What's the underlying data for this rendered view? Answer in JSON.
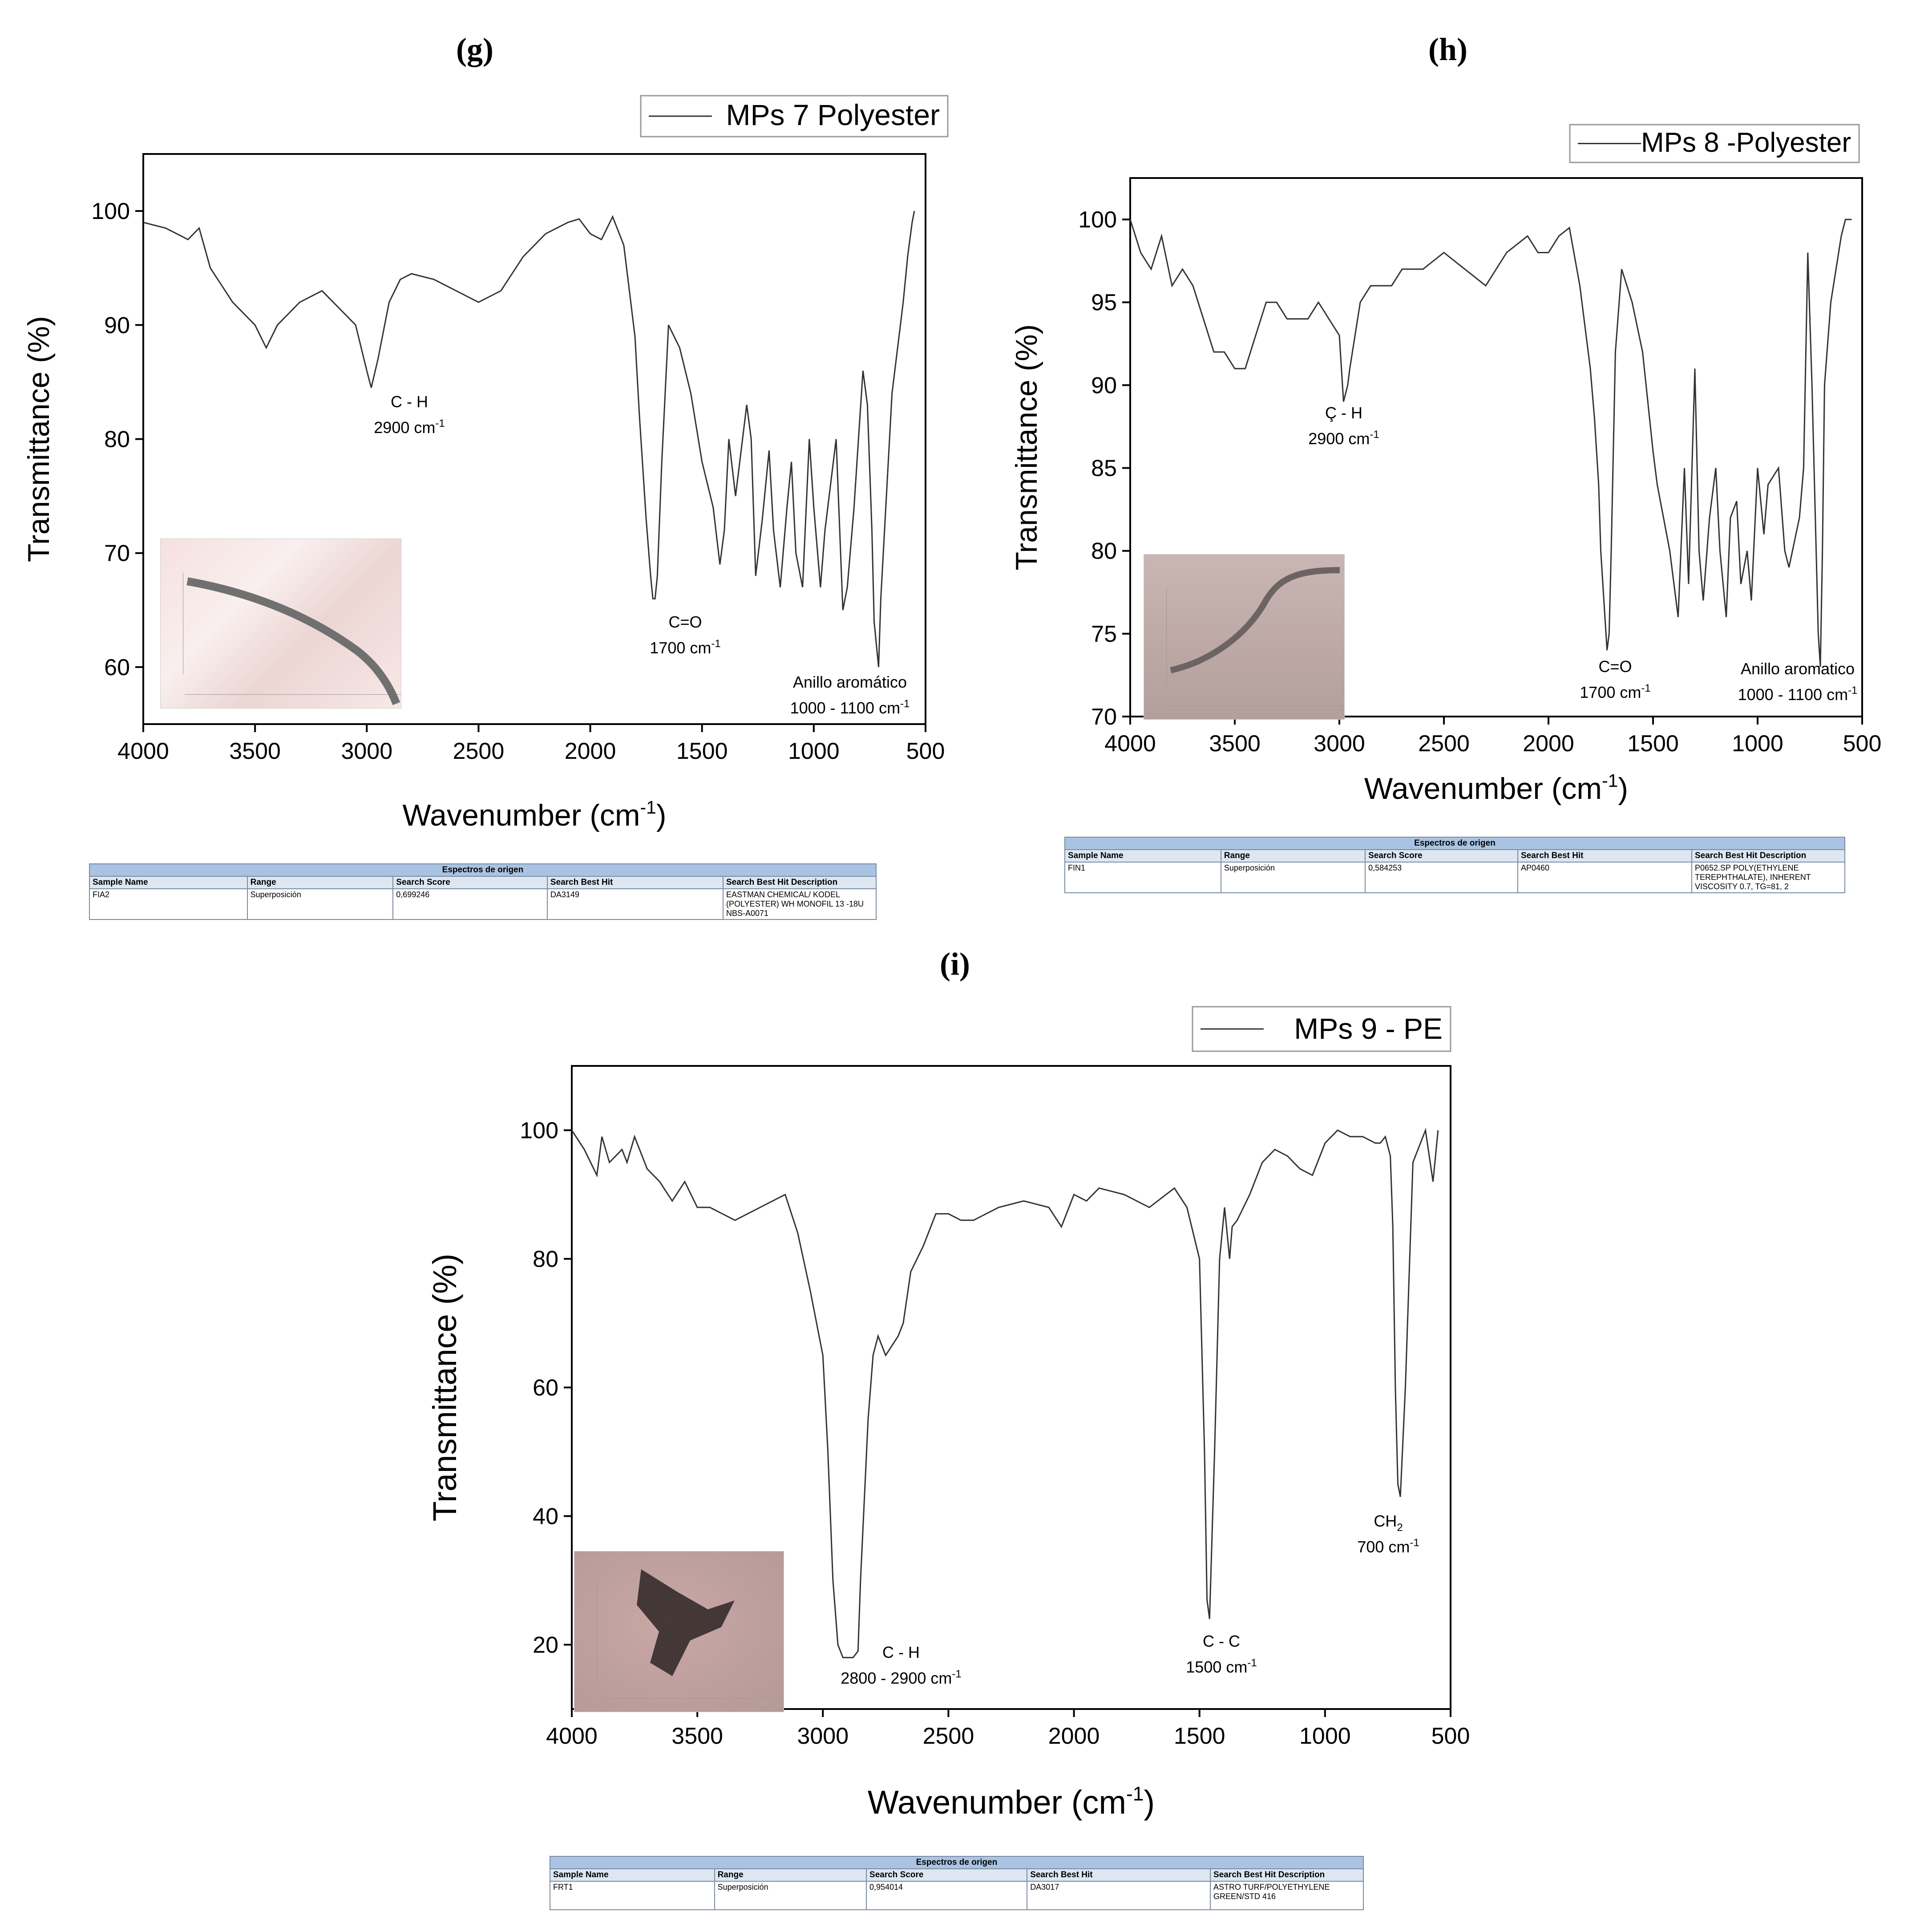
{
  "panels": [
    {
      "label": "(g)",
      "legend": "MPs 7 Polyester"
    },
    {
      "label": "(h)",
      "legend": "MPs 8 -Polyester"
    },
    {
      "label": "(i)",
      "legend": "MPs 9 - PE"
    }
  ],
  "chart_data": [
    {
      "type": "line",
      "panel": "g",
      "series": [
        {
          "name": "MPs 7 Polyester",
          "x": [
            4000,
            3900,
            3800,
            3750,
            3700,
            3600,
            3500,
            3450,
            3400,
            3300,
            3200,
            3100,
            3050,
            3000,
            2980,
            2950,
            2900,
            2850,
            2800,
            2700,
            2600,
            2500,
            2400,
            2300,
            2200,
            2100,
            2050,
            2000,
            1950,
            1900,
            1850,
            1800,
            1780,
            1750,
            1730,
            1720,
            1710,
            1700,
            1680,
            1650,
            1600,
            1550,
            1500,
            1450,
            1420,
            1400,
            1380,
            1350,
            1300,
            1280,
            1260,
            1230,
            1200,
            1180,
            1150,
            1120,
            1100,
            1080,
            1050,
            1020,
            1000,
            970,
            950,
            900,
            870,
            850,
            820,
            800,
            780,
            760,
            740,
            730,
            720,
            710,
            700,
            650,
            600,
            580,
            560,
            550
          ],
          "y": [
            99,
            98.5,
            97.5,
            98.5,
            95,
            92,
            90,
            88,
            90,
            92,
            93,
            91,
            90,
            86,
            84.5,
            87,
            92,
            94,
            94.5,
            94,
            93,
            92,
            93,
            96,
            98,
            99,
            99.3,
            98,
            97.5,
            99.5,
            97,
            89,
            82,
            73,
            68,
            66,
            66,
            68,
            78,
            90,
            88,
            84,
            78,
            74,
            69,
            72,
            80,
            75,
            83,
            80,
            68,
            73,
            79,
            72,
            67,
            74,
            78,
            70,
            67,
            80,
            74,
            67,
            72,
            80,
            65,
            67,
            74,
            80,
            86,
            83,
            72,
            64,
            62,
            60,
            66,
            84,
            92,
            96,
            99,
            100
          ]
        }
      ],
      "title": "",
      "xlabel": "Wavenumber (cm-1)",
      "ylabel": "Transmittance (%)",
      "xlim": [
        4000,
        500
      ],
      "ylim": [
        55,
        105
      ],
      "xticks": [
        "4000",
        "3500",
        "3000",
        "2500",
        "2000",
        "1500",
        "1000",
        "500"
      ],
      "yticks": [
        "60",
        "70",
        "80",
        "90",
        "100"
      ],
      "annotations": [
        {
          "line1": "C - H",
          "line2": "2900 cm",
          "sup": "-1"
        },
        {
          "line1": "C=O",
          "line2": "1700 cm",
          "sup": "-1"
        },
        {
          "line1": "Anillo aromático",
          "line2": "1000 - 1100 cm",
          "sup": "-1"
        }
      ],
      "legend_position": "top-right"
    },
    {
      "type": "line",
      "panel": "h",
      "series": [
        {
          "name": "MPs 8 -Polyester",
          "x": [
            4000,
            3950,
            3900,
            3850,
            3800,
            3750,
            3700,
            3650,
            3600,
            3550,
            3500,
            3450,
            3400,
            3350,
            3300,
            3250,
            3200,
            3150,
            3100,
            3050,
            3000,
            2980,
            2960,
            2950,
            2900,
            2850,
            2800,
            2750,
            2700,
            2600,
            2500,
            2400,
            2300,
            2200,
            2100,
            2050,
            2000,
            1950,
            1900,
            1850,
            1800,
            1780,
            1760,
            1750,
            1730,
            1720,
            1710,
            1700,
            1680,
            1650,
            1600,
            1550,
            1500,
            1480,
            1450,
            1420,
            1400,
            1380,
            1350,
            1330,
            1300,
            1280,
            1260,
            1230,
            1200,
            1180,
            1150,
            1130,
            1100,
            1080,
            1050,
            1030,
            1000,
            970,
            950,
            900,
            870,
            850,
            800,
            780,
            760,
            740,
            720,
            710,
            700,
            690,
            680,
            650,
            600,
            580,
            550
          ],
          "y": [
            100,
            98,
            97,
            99,
            96,
            97,
            96,
            94,
            92,
            92,
            91,
            91,
            93,
            95,
            95,
            94,
            94,
            94,
            95,
            94,
            93,
            89,
            90,
            91,
            95,
            96,
            96,
            96,
            97,
            97,
            98,
            97,
            96,
            98,
            99,
            98,
            98,
            99,
            99.5,
            96,
            91,
            88,
            84,
            80,
            76,
            74,
            75,
            80,
            92,
            97,
            95,
            92,
            86,
            84,
            82,
            80,
            78,
            76,
            85,
            78,
            91,
            80,
            77,
            82,
            85,
            80,
            76,
            82,
            83,
            78,
            80,
            77,
            85,
            81,
            84,
            85,
            80,
            79,
            82,
            85,
            98,
            90,
            80,
            75,
            73,
            80,
            90,
            95,
            99,
            100,
            100
          ]
        }
      ],
      "title": "",
      "xlabel": "Wavenumber (cm-1)",
      "ylabel": "Transmittance (%)",
      "xlim": [
        4000,
        500
      ],
      "ylim": [
        70,
        102.5
      ],
      "xticks": [
        "4000",
        "3500",
        "3000",
        "2500",
        "2000",
        "1500",
        "1000",
        "500"
      ],
      "yticks": [
        "70",
        "75",
        "80",
        "85",
        "90",
        "95",
        "100"
      ],
      "annotations": [
        {
          "line1": "Ç - H",
          "line2": "2900 cm",
          "sup": "-1"
        },
        {
          "line1": "C=O",
          "line2": "1700 cm",
          "sup": "-1"
        },
        {
          "line1": "Anillo aromatico",
          "line2": "1000 - 1100 cm",
          "sup": "-1"
        }
      ],
      "legend_position": "top-right"
    },
    {
      "type": "line",
      "panel": "i",
      "series": [
        {
          "name": "MPs 9 - PE",
          "x": [
            4000,
            3950,
            3900,
            3880,
            3850,
            3800,
            3780,
            3750,
            3700,
            3650,
            3600,
            3550,
            3500,
            3450,
            3400,
            3350,
            3300,
            3250,
            3200,
            3150,
            3100,
            3050,
            3000,
            2980,
            2960,
            2940,
            2920,
            2900,
            2880,
            2860,
            2850,
            2820,
            2800,
            2780,
            2750,
            2700,
            2680,
            2650,
            2600,
            2550,
            2500,
            2450,
            2400,
            2300,
            2200,
            2100,
            2050,
            2000,
            1950,
            1900,
            1800,
            1700,
            1600,
            1550,
            1500,
            1480,
            1470,
            1460,
            1440,
            1420,
            1400,
            1380,
            1370,
            1350,
            1300,
            1250,
            1200,
            1150,
            1100,
            1050,
            1000,
            950,
            900,
            850,
            800,
            780,
            760,
            740,
            730,
            720,
            710,
            700,
            680,
            650,
            600,
            570,
            550
          ],
          "y": [
            100,
            97,
            93,
            99,
            95,
            97,
            95,
            99,
            94,
            92,
            89,
            92,
            88,
            88,
            87,
            86,
            87,
            88,
            89,
            90,
            84,
            75,
            65,
            50,
            30,
            20,
            18,
            18,
            18,
            19,
            30,
            55,
            65,
            68,
            65,
            68,
            70,
            78,
            82,
            87,
            87,
            86,
            86,
            88,
            89,
            88,
            85,
            90,
            89,
            91,
            90,
            88,
            91,
            88,
            80,
            50,
            27,
            24,
            50,
            80,
            88,
            80,
            85,
            86,
            90,
            95,
            97,
            96,
            94,
            93,
            98,
            100,
            99,
            99,
            98,
            98,
            99,
            96,
            85,
            60,
            45,
            43,
            60,
            95,
            100,
            92,
            100
          ]
        }
      ],
      "title": "",
      "xlabel": "Wavenumber (cm-1)",
      "ylabel": "Transmittance (%)",
      "xlim": [
        4000,
        500
      ],
      "ylim": [
        10,
        110
      ],
      "xticks": [
        "4000",
        "3500",
        "3000",
        "2500",
        "2000",
        "1500",
        "1000",
        "500"
      ],
      "yticks": [
        "20",
        "40",
        "60",
        "80",
        "100"
      ],
      "annotations": [
        {
          "line1": "C - H",
          "line2": "2800 - 2900 cm",
          "sup": "-1"
        },
        {
          "line1": "C - C",
          "line2": "1500 cm",
          "sup": "-1"
        },
        {
          "line1": "CH",
          "sub": "2",
          "line2": "700 cm",
          "sup": "-1"
        }
      ],
      "legend_position": "top-right"
    }
  ],
  "result_tables": [
    {
      "caption": "Espectros de origen",
      "headers": [
        "Sample Name",
        "Range",
        "Search Score",
        "Search Best Hit",
        "Search Best Hit Description"
      ],
      "row": [
        "FIA2",
        "Superposición",
        "0,699246",
        "DA3149",
        "EASTMAN CHEMICAL/ KODEL (POLYESTER) WH MONOFIL 13 -18U NBS-A0071"
      ]
    },
    {
      "caption": "Espectros de origen",
      "headers": [
        "Sample Name",
        "Range",
        "Search Score",
        "Search Best Hit",
        "Search Best Hit Description"
      ],
      "row": [
        "FIN1",
        "Superposición",
        "0,584253",
        "AP0460",
        "P0652.SP POLY(ETHYLENE TEREPHTHALATE), INHERENT VISCOSITY 0.7, TG=81, 2"
      ]
    },
    {
      "caption": "Espectros de origen",
      "headers": [
        "Sample Name",
        "Range",
        "Search Score",
        "Search Best Hit",
        "Search Best Hit Description"
      ],
      "row": [
        "FRT1",
        "Superposición",
        "0,954014",
        "DA3017",
        "ASTRO TURF/POLYETHYLENE GREEN/STD 416"
      ]
    }
  ],
  "colors": {
    "line": "#333333",
    "table_caption": "#a9c4e2",
    "table_header": "#dde7f2"
  }
}
